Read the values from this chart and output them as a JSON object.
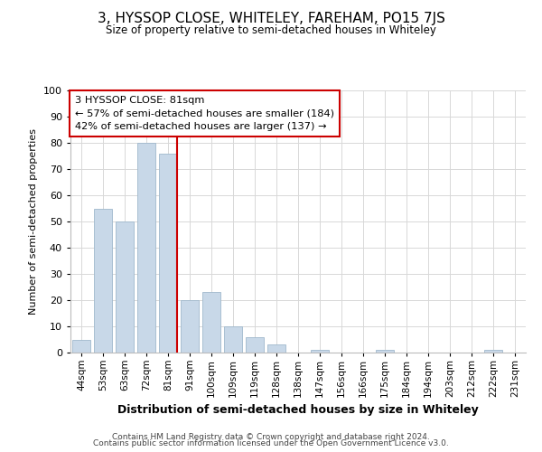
{
  "title": "3, HYSSOP CLOSE, WHITELEY, FAREHAM, PO15 7JS",
  "subtitle": "Size of property relative to semi-detached houses in Whiteley",
  "xlabel": "Distribution of semi-detached houses by size in Whiteley",
  "ylabel": "Number of semi-detached properties",
  "categories": [
    "44sqm",
    "53sqm",
    "63sqm",
    "72sqm",
    "81sqm",
    "91sqm",
    "100sqm",
    "109sqm",
    "119sqm",
    "128sqm",
    "138sqm",
    "147sqm",
    "156sqm",
    "166sqm",
    "175sqm",
    "184sqm",
    "194sqm",
    "203sqm",
    "212sqm",
    "222sqm",
    "231sqm"
  ],
  "values": [
    5,
    55,
    50,
    80,
    76,
    20,
    23,
    10,
    6,
    3,
    0,
    1,
    0,
    0,
    1,
    0,
    0,
    0,
    0,
    1,
    0
  ],
  "bar_color": "#c8d8e8",
  "bar_edge_color": "#a0b8cc",
  "highlight_index": 4,
  "highlight_line_color": "#cc0000",
  "ylim": [
    0,
    100
  ],
  "yticks": [
    0,
    10,
    20,
    30,
    40,
    50,
    60,
    70,
    80,
    90,
    100
  ],
  "annotation_title": "3 HYSSOP CLOSE: 81sqm",
  "annotation_line1": "← 57% of semi-detached houses are smaller (184)",
  "annotation_line2": "42% of semi-detached houses are larger (137) →",
  "annotation_box_color": "#ffffff",
  "annotation_box_edge": "#cc0000",
  "footer1": "Contains HM Land Registry data © Crown copyright and database right 2024.",
  "footer2": "Contains public sector information licensed under the Open Government Licence v3.0.",
  "background_color": "#ffffff",
  "grid_color": "#d8d8d8"
}
